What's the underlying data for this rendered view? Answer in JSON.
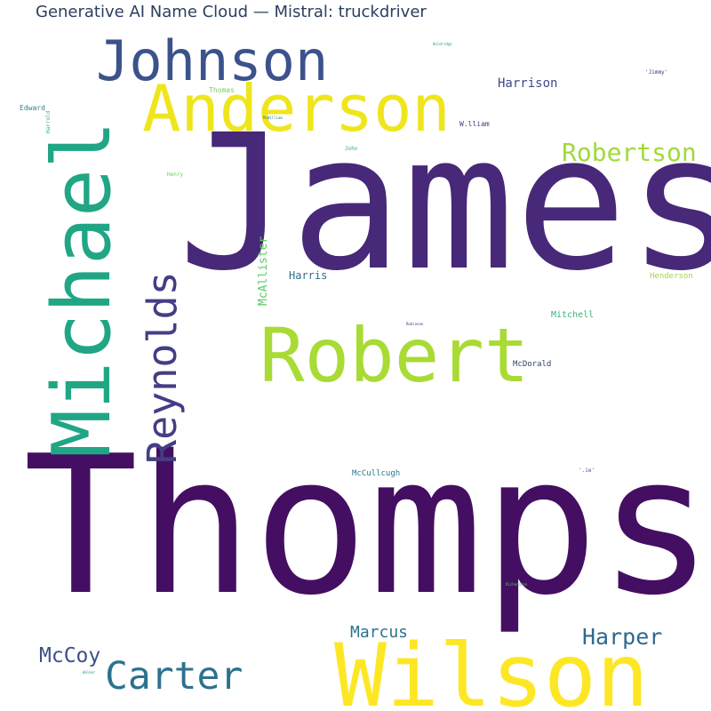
{
  "title": "Generative AI Name Cloud — Mistral: truckdriver",
  "words": [
    {
      "text": "James",
      "color": "#482878"
    },
    {
      "text": "Thompson",
      "color": "#440f62"
    },
    {
      "text": "Robert",
      "color": "#a8db34"
    },
    {
      "text": "Michael",
      "color": "#21a685"
    },
    {
      "text": "Anderson",
      "color": "#efe51c"
    },
    {
      "text": "Johnson",
      "color": "#3b528b"
    },
    {
      "text": "Wilson",
      "color": "#fde725"
    },
    {
      "text": "Reynolds",
      "color": "#433e85"
    },
    {
      "text": "Carter",
      "color": "#2c728e"
    },
    {
      "text": "Robertson",
      "color": "#a0da39"
    },
    {
      "text": "Harper",
      "color": "#31688e"
    },
    {
      "text": "McCoy",
      "color": "#3b528b"
    },
    {
      "text": "Marcus",
      "color": "#2c728e"
    },
    {
      "text": "Harrison",
      "color": "#3e4989"
    },
    {
      "text": "McAllister",
      "color": "#5ec962"
    },
    {
      "text": "Harris",
      "color": "#2c728e"
    },
    {
      "text": "Mitchell",
      "color": "#35b779"
    },
    {
      "text": "McDorald",
      "color": "#31446b"
    },
    {
      "text": "McCullcugh",
      "color": "#2a788e"
    },
    {
      "text": "Henderson",
      "color": "#9bd93c"
    },
    {
      "text": "W.lliam",
      "color": "#443a83"
    },
    {
      "text": "Thomas",
      "color": "#7ad151"
    },
    {
      "text": "Edward",
      "color": "#26828e"
    },
    {
      "text": "Harrold",
      "color": "#35b779"
    },
    {
      "text": "John",
      "color": "#2db27d"
    },
    {
      "text": "Henry",
      "color": "#6ece58"
    },
    {
      "text": "'Jimmy'",
      "color": "#46327e"
    },
    {
      "text": "'.ie'",
      "color": "#3b528b"
    },
    {
      "text": "Holdridge",
      "color": "#1fa187"
    },
    {
      "text": "McWilliam",
      "color": "#2a788e"
    },
    {
      "text": "Robinson",
      "color": "#46327e"
    },
    {
      "text": "Richardson",
      "color": "#5ec962"
    },
    {
      "text": "Walker",
      "color": "#1f9e89"
    }
  ]
}
